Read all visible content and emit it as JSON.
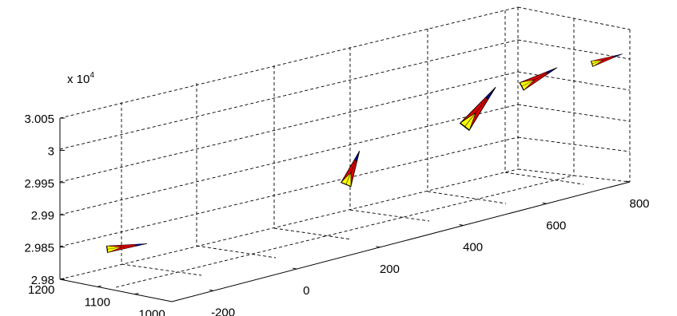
{
  "chart_data": {
    "type": "scatter",
    "title": "",
    "xlabel": "",
    "ylabel": "",
    "zlabel": "",
    "z_multiplier_label": {
      "base": "x 10",
      "exponent": "4"
    },
    "x_axis": {
      "ticks": [
        1200,
        1100,
        1000
      ],
      "tick_labels": [
        "1200",
        "1100",
        "1000"
      ]
    },
    "y_axis": {
      "ticks": [
        -200,
        0,
        200,
        400,
        600,
        800
      ],
      "tick_labels": [
        "-200",
        "0",
        "200",
        "400",
        "600",
        "800"
      ]
    },
    "z_axis": {
      "ticks": [
        2.98,
        2.985,
        2.99,
        2.995,
        3.0,
        3.005
      ],
      "tick_labels": [
        "2.98",
        "2.985",
        "2.99",
        "2.995",
        "3",
        "3.005"
      ]
    },
    "grid": true,
    "marker": "aircraft-glyph",
    "colors": {
      "marker_main": "#e00000",
      "marker_accent": "#ffff00",
      "marker_nose": "#0000cc",
      "marker_edge": "#000000"
    }
  }
}
